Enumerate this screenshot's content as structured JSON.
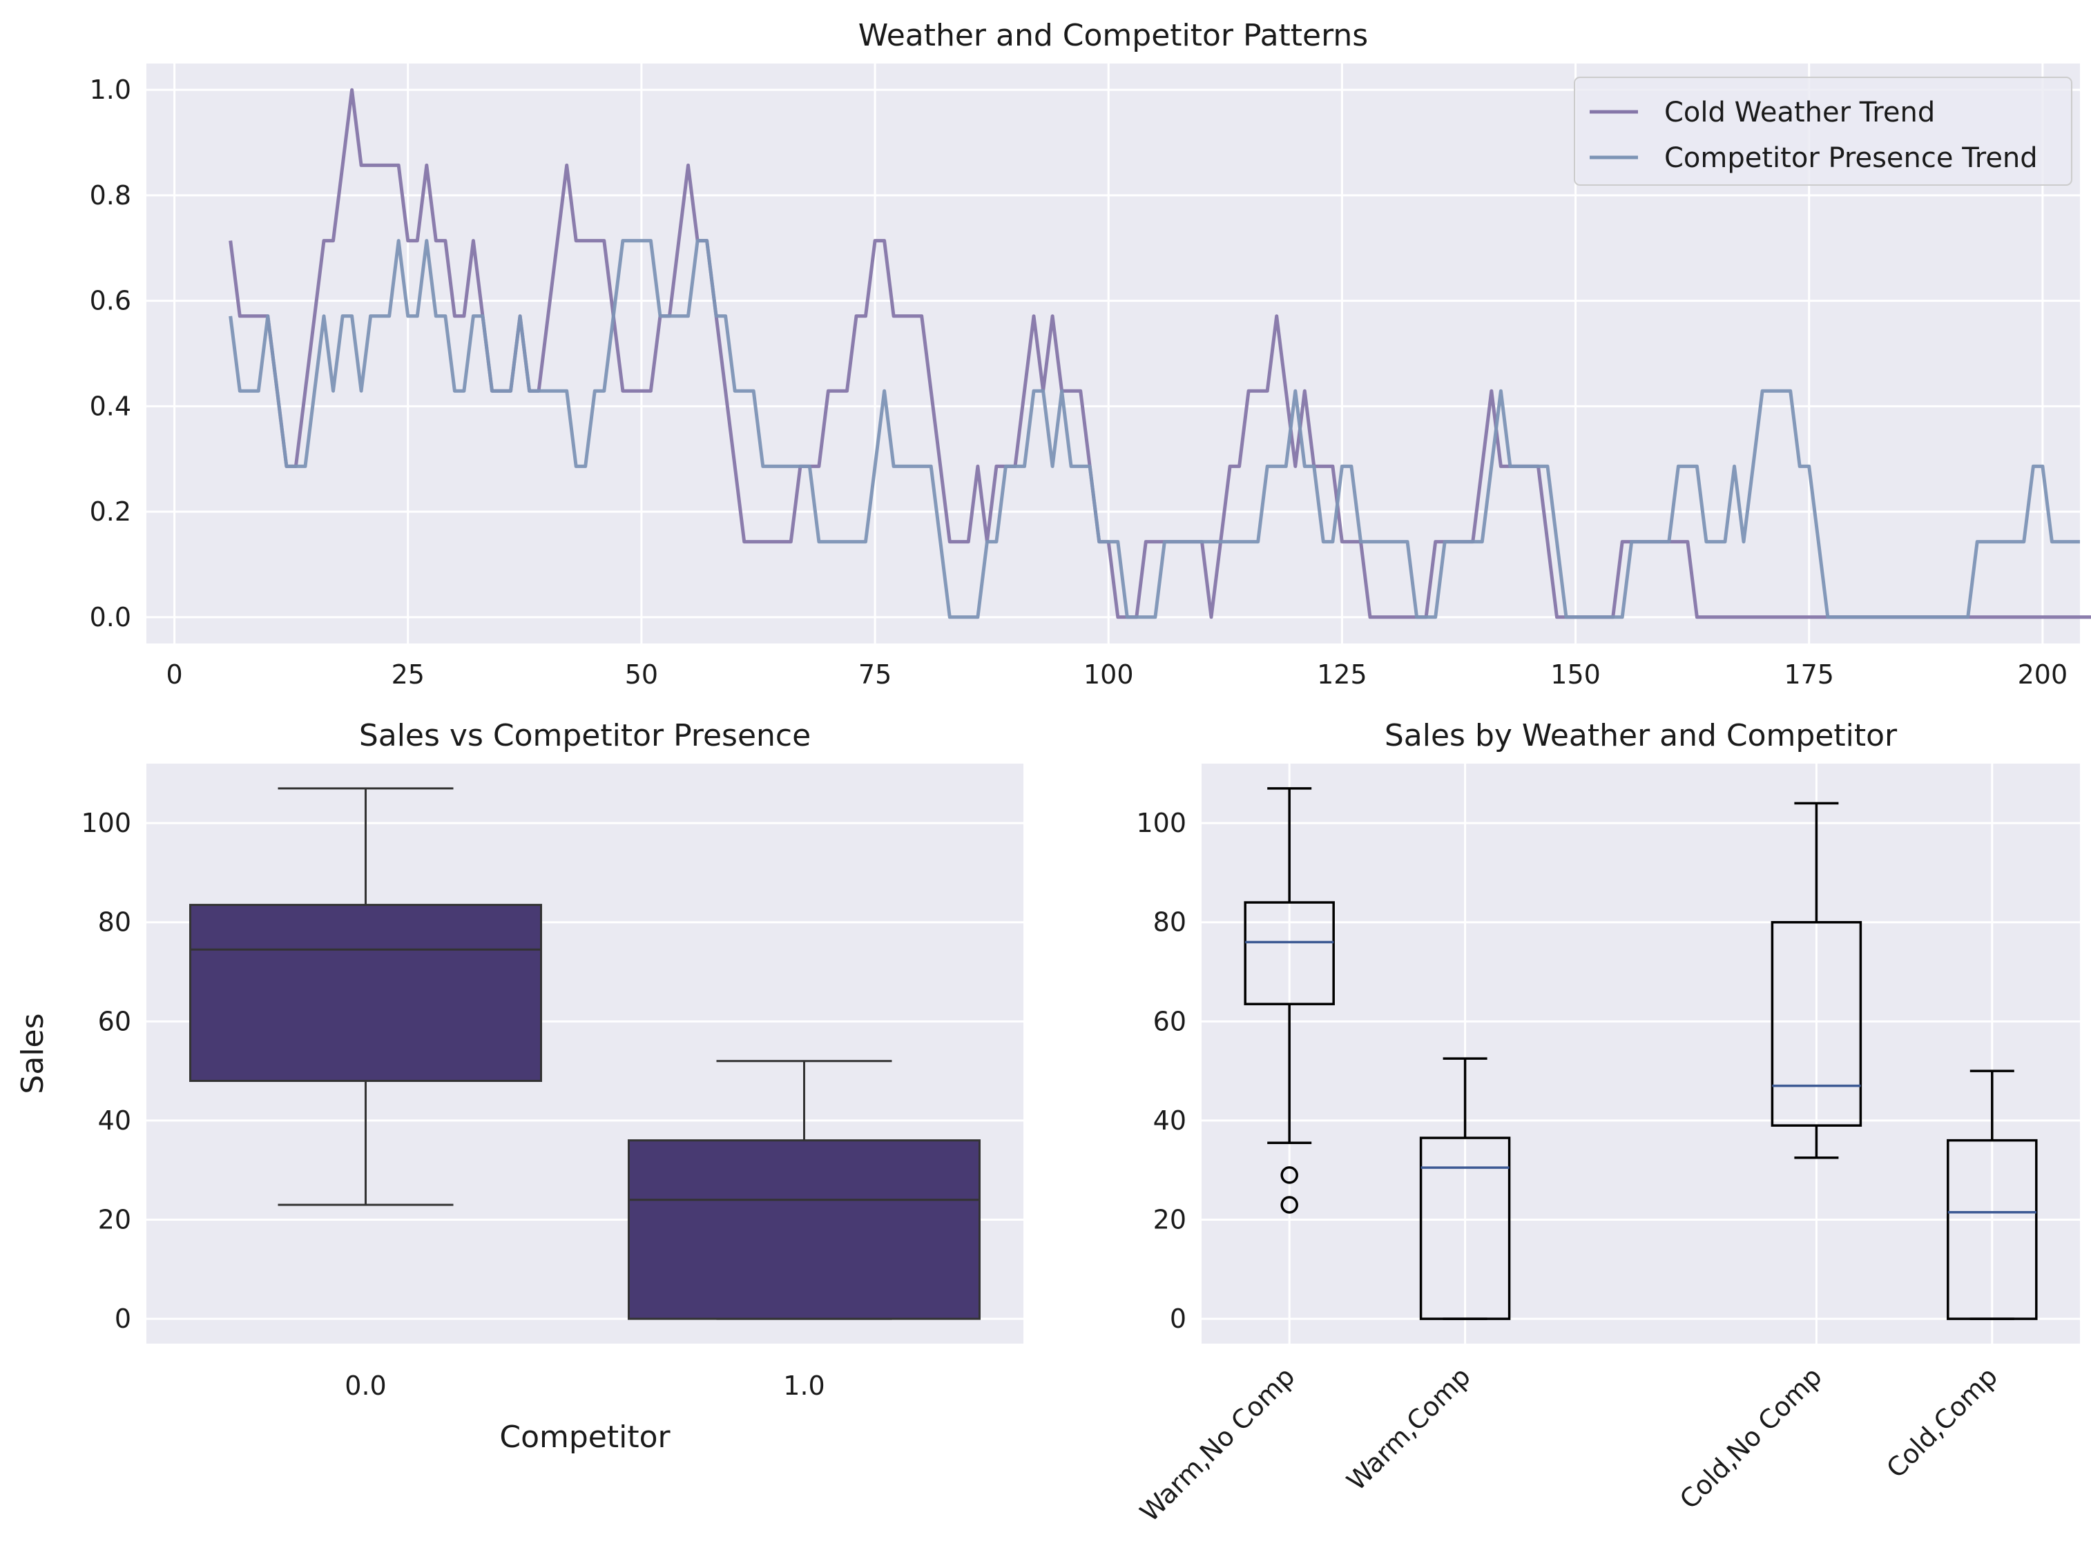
{
  "chart_data": [
    {
      "type": "line",
      "title": "Weather and Competitor Patterns",
      "xlabel": "",
      "ylabel": "",
      "xlim": [
        -3,
        204
      ],
      "ylim": [
        -0.05,
        1.05
      ],
      "xticks": [
        0,
        25,
        50,
        75,
        100,
        125,
        150,
        175,
        200
      ],
      "xtick_labels": [
        "0",
        "25",
        "50",
        "75",
        "100",
        "125",
        "150",
        "175",
        "200"
      ],
      "yticks": [
        0.0,
        0.2,
        0.4,
        0.6,
        0.8,
        1.0
      ],
      "ytick_labels": [
        "0.0",
        "0.2",
        "0.4",
        "0.6",
        "0.8",
        "1.0"
      ],
      "grid": true,
      "legend": "top-right",
      "x_start": 6,
      "series": [
        {
          "name": "Cold Weather Trend",
          "color": "#8576a8",
          "values": [
            0.714,
            0.571,
            0.571,
            0.571,
            0.571,
            0.429,
            0.286,
            0.286,
            0.429,
            0.571,
            0.714,
            0.714,
            0.857,
            1.0,
            0.857,
            0.857,
            0.857,
            0.857,
            0.857,
            0.714,
            0.714,
            0.857,
            0.714,
            0.714,
            0.571,
            0.571,
            0.714,
            0.571,
            0.429,
            0.429,
            0.429,
            0.571,
            0.429,
            0.429,
            0.571,
            0.714,
            0.857,
            0.714,
            0.714,
            0.714,
            0.714,
            0.571,
            0.429,
            0.429,
            0.429,
            0.429,
            0.571,
            0.571,
            0.714,
            0.857,
            0.714,
            0.714,
            0.571,
            0.429,
            0.286,
            0.143,
            0.143,
            0.143,
            0.143,
            0.143,
            0.143,
            0.286,
            0.286,
            0.286,
            0.429,
            0.429,
            0.429,
            0.571,
            0.571,
            0.714,
            0.714,
            0.571,
            0.571,
            0.571,
            0.571,
            0.429,
            0.286,
            0.143,
            0.143,
            0.143,
            0.286,
            0.143,
            0.286,
            0.286,
            0.286,
            0.429,
            0.571,
            0.429,
            0.571,
            0.429,
            0.429,
            0.429,
            0.286,
            0.143,
            0.143,
            0.0,
            0.0,
            0.0,
            0.143,
            0.143,
            0.143,
            0.143,
            0.143,
            0.143,
            0.143,
            0.0,
            0.143,
            0.286,
            0.286,
            0.429,
            0.429,
            0.429,
            0.571,
            0.429,
            0.286,
            0.429,
            0.286,
            0.286,
            0.286,
            0.143,
            0.143,
            0.143,
            0.0,
            0.0,
            0.0,
            0.0,
            0.0,
            0.0,
            0.0,
            0.143,
            0.143,
            0.143,
            0.143,
            0.143,
            0.286,
            0.429,
            0.286,
            0.286,
            0.286,
            0.286,
            0.286,
            0.143,
            0.0,
            0.0,
            0.0,
            0.0,
            0.0,
            0.0,
            0.0,
            0.143,
            0.143,
            0.143,
            0.143,
            0.143,
            0.143,
            0.143,
            0.143,
            0.0,
            0.0,
            0.0,
            0.0,
            0.0,
            0.0,
            0.0,
            0.0,
            0.0,
            0.0,
            0.0,
            0.0,
            0.0,
            0.0,
            0.0,
            0.0,
            0.0,
            0.0,
            0.0,
            0.0,
            0.0,
            0.0,
            0.0,
            0.0,
            0.0,
            0.0,
            0.0,
            0.0,
            0.0,
            0.0,
            0.0,
            0.0,
            0.0,
            0.0,
            0.0,
            0.0,
            0.0,
            0.0,
            0.0,
            0.0,
            0.0,
            0.0,
            0.0,
            0.0,
            0.0,
            0.0,
            0.0,
            0.0,
            0.0,
            0.0
          ]
        },
        {
          "name": "Competitor Presence Trend",
          "color": "#7d94b5",
          "values": [
            0.571,
            0.429,
            0.429,
            0.429,
            0.571,
            0.429,
            0.286,
            0.286,
            0.286,
            0.429,
            0.571,
            0.429,
            0.571,
            0.571,
            0.429,
            0.571,
            0.571,
            0.571,
            0.714,
            0.571,
            0.571,
            0.714,
            0.571,
            0.571,
            0.429,
            0.429,
            0.571,
            0.571,
            0.429,
            0.429,
            0.429,
            0.571,
            0.429,
            0.429,
            0.429,
            0.429,
            0.429,
            0.286,
            0.286,
            0.429,
            0.429,
            0.571,
            0.714,
            0.714,
            0.714,
            0.714,
            0.571,
            0.571,
            0.571,
            0.571,
            0.714,
            0.714,
            0.571,
            0.571,
            0.429,
            0.429,
            0.429,
            0.286,
            0.286,
            0.286,
            0.286,
            0.286,
            0.286,
            0.143,
            0.143,
            0.143,
            0.143,
            0.143,
            0.143,
            0.286,
            0.429,
            0.286,
            0.286,
            0.286,
            0.286,
            0.286,
            0.143,
            0.0,
            0.0,
            0.0,
            0.0,
            0.143,
            0.143,
            0.286,
            0.286,
            0.286,
            0.429,
            0.429,
            0.286,
            0.429,
            0.286,
            0.286,
            0.286,
            0.143,
            0.143,
            0.143,
            0.0,
            0.0,
            0.0,
            0.0,
            0.143,
            0.143,
            0.143,
            0.143,
            0.143,
            0.143,
            0.143,
            0.143,
            0.143,
            0.143,
            0.143,
            0.286,
            0.286,
            0.286,
            0.429,
            0.286,
            0.286,
            0.143,
            0.143,
            0.286,
            0.286,
            0.143,
            0.143,
            0.143,
            0.143,
            0.143,
            0.143,
            0.0,
            0.0,
            0.0,
            0.143,
            0.143,
            0.143,
            0.143,
            0.143,
            0.286,
            0.429,
            0.286,
            0.286,
            0.286,
            0.286,
            0.286,
            0.143,
            0.0,
            0.0,
            0.0,
            0.0,
            0.0,
            0.0,
            0.0,
            0.143,
            0.143,
            0.143,
            0.143,
            0.143,
            0.286,
            0.286,
            0.286,
            0.143,
            0.143,
            0.143,
            0.286,
            0.143,
            0.286,
            0.429,
            0.429,
            0.429,
            0.429,
            0.286,
            0.286,
            0.143,
            0.0,
            0.0,
            0.0,
            0.0,
            0.0,
            0.0,
            0.0,
            0.0,
            0.0,
            0.0,
            0.0,
            0.0,
            0.0,
            0.0,
            0.0,
            0.0,
            0.143,
            0.143,
            0.143,
            0.143,
            0.143,
            0.143,
            0.286,
            0.286,
            0.143,
            0.143,
            0.143,
            0.143
          ]
        }
      ]
    },
    {
      "type": "box",
      "title": "Sales vs Competitor Presence",
      "xlabel": "Competitor",
      "ylabel": "Sales",
      "ylim": [
        -5,
        112
      ],
      "yticks": [
        0,
        20,
        40,
        60,
        80,
        100
      ],
      "ytick_labels": [
        "0",
        "20",
        "40",
        "60",
        "80",
        "100"
      ],
      "categories": [
        "0.0",
        "1.0"
      ],
      "fill_color": "#483a72",
      "line_color": "#333333",
      "grid": true,
      "boxes": [
        {
          "category": "0.0",
          "whislo": 23,
          "q1": 48,
          "med": 74.5,
          "q3": 83.5,
          "whishi": 107,
          "fliers": []
        },
        {
          "category": "1.0",
          "whislo": 0,
          "q1": 0,
          "med": 24,
          "q3": 36,
          "whishi": 52,
          "fliers": []
        }
      ]
    },
    {
      "type": "box",
      "title": "Sales by Weather and Competitor",
      "xlabel": "",
      "ylabel": "",
      "ylim": [
        -5,
        112
      ],
      "yticks": [
        0,
        20,
        40,
        60,
        80,
        100
      ],
      "ytick_labels": [
        "0",
        "20",
        "40",
        "60",
        "80",
        "100"
      ],
      "categories": [
        "Warm,No Comp",
        "Warm,Comp",
        "Cold,No Comp",
        "Cold,Comp"
      ],
      "positions": [
        1,
        2,
        4,
        5
      ],
      "median_color": "#3d5a94",
      "line_color": "#000000",
      "grid": true,
      "boxes": [
        {
          "category": "Warm,No Comp",
          "whislo": 35.5,
          "q1": 63.5,
          "med": 76,
          "q3": 84,
          "whishi": 107,
          "fliers": [
            29,
            23
          ]
        },
        {
          "category": "Warm,Comp",
          "whislo": 0,
          "q1": 0,
          "med": 30.5,
          "q3": 36.5,
          "whishi": 52.5,
          "fliers": []
        },
        {
          "category": "Cold,No Comp",
          "whislo": 32.5,
          "q1": 39,
          "med": 47,
          "q3": 80,
          "whishi": 104,
          "fliers": []
        },
        {
          "category": "Cold,Comp",
          "whislo": 0,
          "q1": 0,
          "med": 21.5,
          "q3": 36,
          "whishi": 50,
          "fliers": []
        }
      ]
    }
  ]
}
